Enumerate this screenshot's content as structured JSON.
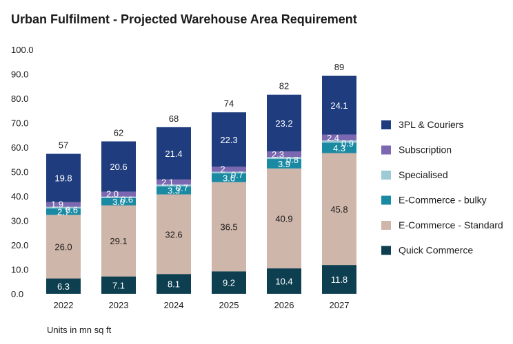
{
  "chart_data": {
    "type": "bar",
    "stacked": true,
    "title": "Urban Fulfilment - Projected Warehouse Area Requirement",
    "units_note": "Units in mn sq ft",
    "categories": [
      "2022",
      "2023",
      "2024",
      "2025",
      "2026",
      "2027"
    ],
    "totals": [
      "57",
      "62",
      "68",
      "74",
      "82",
      "89"
    ],
    "ylim": [
      0,
      100
    ],
    "yticks": [
      "0.0",
      "10.0",
      "20.0",
      "30.0",
      "40.0",
      "50.0",
      "60.0",
      "70.0",
      "80.0",
      "90.0",
      "100.0"
    ],
    "series": [
      {
        "name": "Quick Commerce",
        "color": "#0d3f50",
        "label_color": "#ffffff",
        "values": [
          6.3,
          7.1,
          8.1,
          9.2,
          10.4,
          11.8
        ],
        "labels": [
          "6.3",
          "7.1",
          "8.1",
          "9.2",
          "10.4",
          "11.8"
        ]
      },
      {
        "name": "E-Commerce - Standard",
        "color": "#cfb6aa",
        "label_color": "#1a1a1a",
        "values": [
          26.0,
          29.1,
          32.6,
          36.5,
          40.9,
          45.8
        ],
        "labels": [
          "26.0",
          "29.1",
          "32.6",
          "36.5",
          "40.9",
          "45.8"
        ]
      },
      {
        "name": "E-Commerce - bulky",
        "color": "#1a8aa3",
        "label_color": "#ffffff",
        "values": [
          2.7,
          3.0,
          3.3,
          3.6,
          3.9,
          4.3
        ],
        "labels": [
          "2.7",
          "3.0",
          "3.3",
          "3.6",
          "3.9",
          "4.3"
        ]
      },
      {
        "name": "Specialised",
        "color": "#9ecad6",
        "label_color": "#ffffff",
        "values": [
          0.6,
          0.6,
          0.7,
          0.7,
          0.8,
          0.9
        ],
        "labels": [
          "0.6",
          "0.6",
          "0.7",
          "0.7",
          "0.8",
          "0.9"
        ]
      },
      {
        "name": "Subscription",
        "color": "#7b68b0",
        "label_color": "#ffffff",
        "values": [
          1.9,
          2.0,
          2.1,
          2.0,
          2.3,
          2.4
        ],
        "labels": [
          "1.9",
          "2.0",
          "2.1",
          "2",
          "2.3",
          "2.4"
        ]
      },
      {
        "name": "3PL & Couriers",
        "color": "#1f3d7e",
        "label_color": "#ffffff",
        "values": [
          19.8,
          20.6,
          21.4,
          22.3,
          23.2,
          24.1
        ],
        "labels": [
          "19.8",
          "20.6",
          "21.4",
          "22.3",
          "23.2",
          "24.1"
        ]
      }
    ],
    "legend": {
      "position": "right",
      "order": [
        "3PL & Couriers",
        "Subscription",
        "Specialised",
        "E-Commerce - bulky",
        "E-Commerce - Standard",
        "Quick Commerce"
      ]
    }
  }
}
